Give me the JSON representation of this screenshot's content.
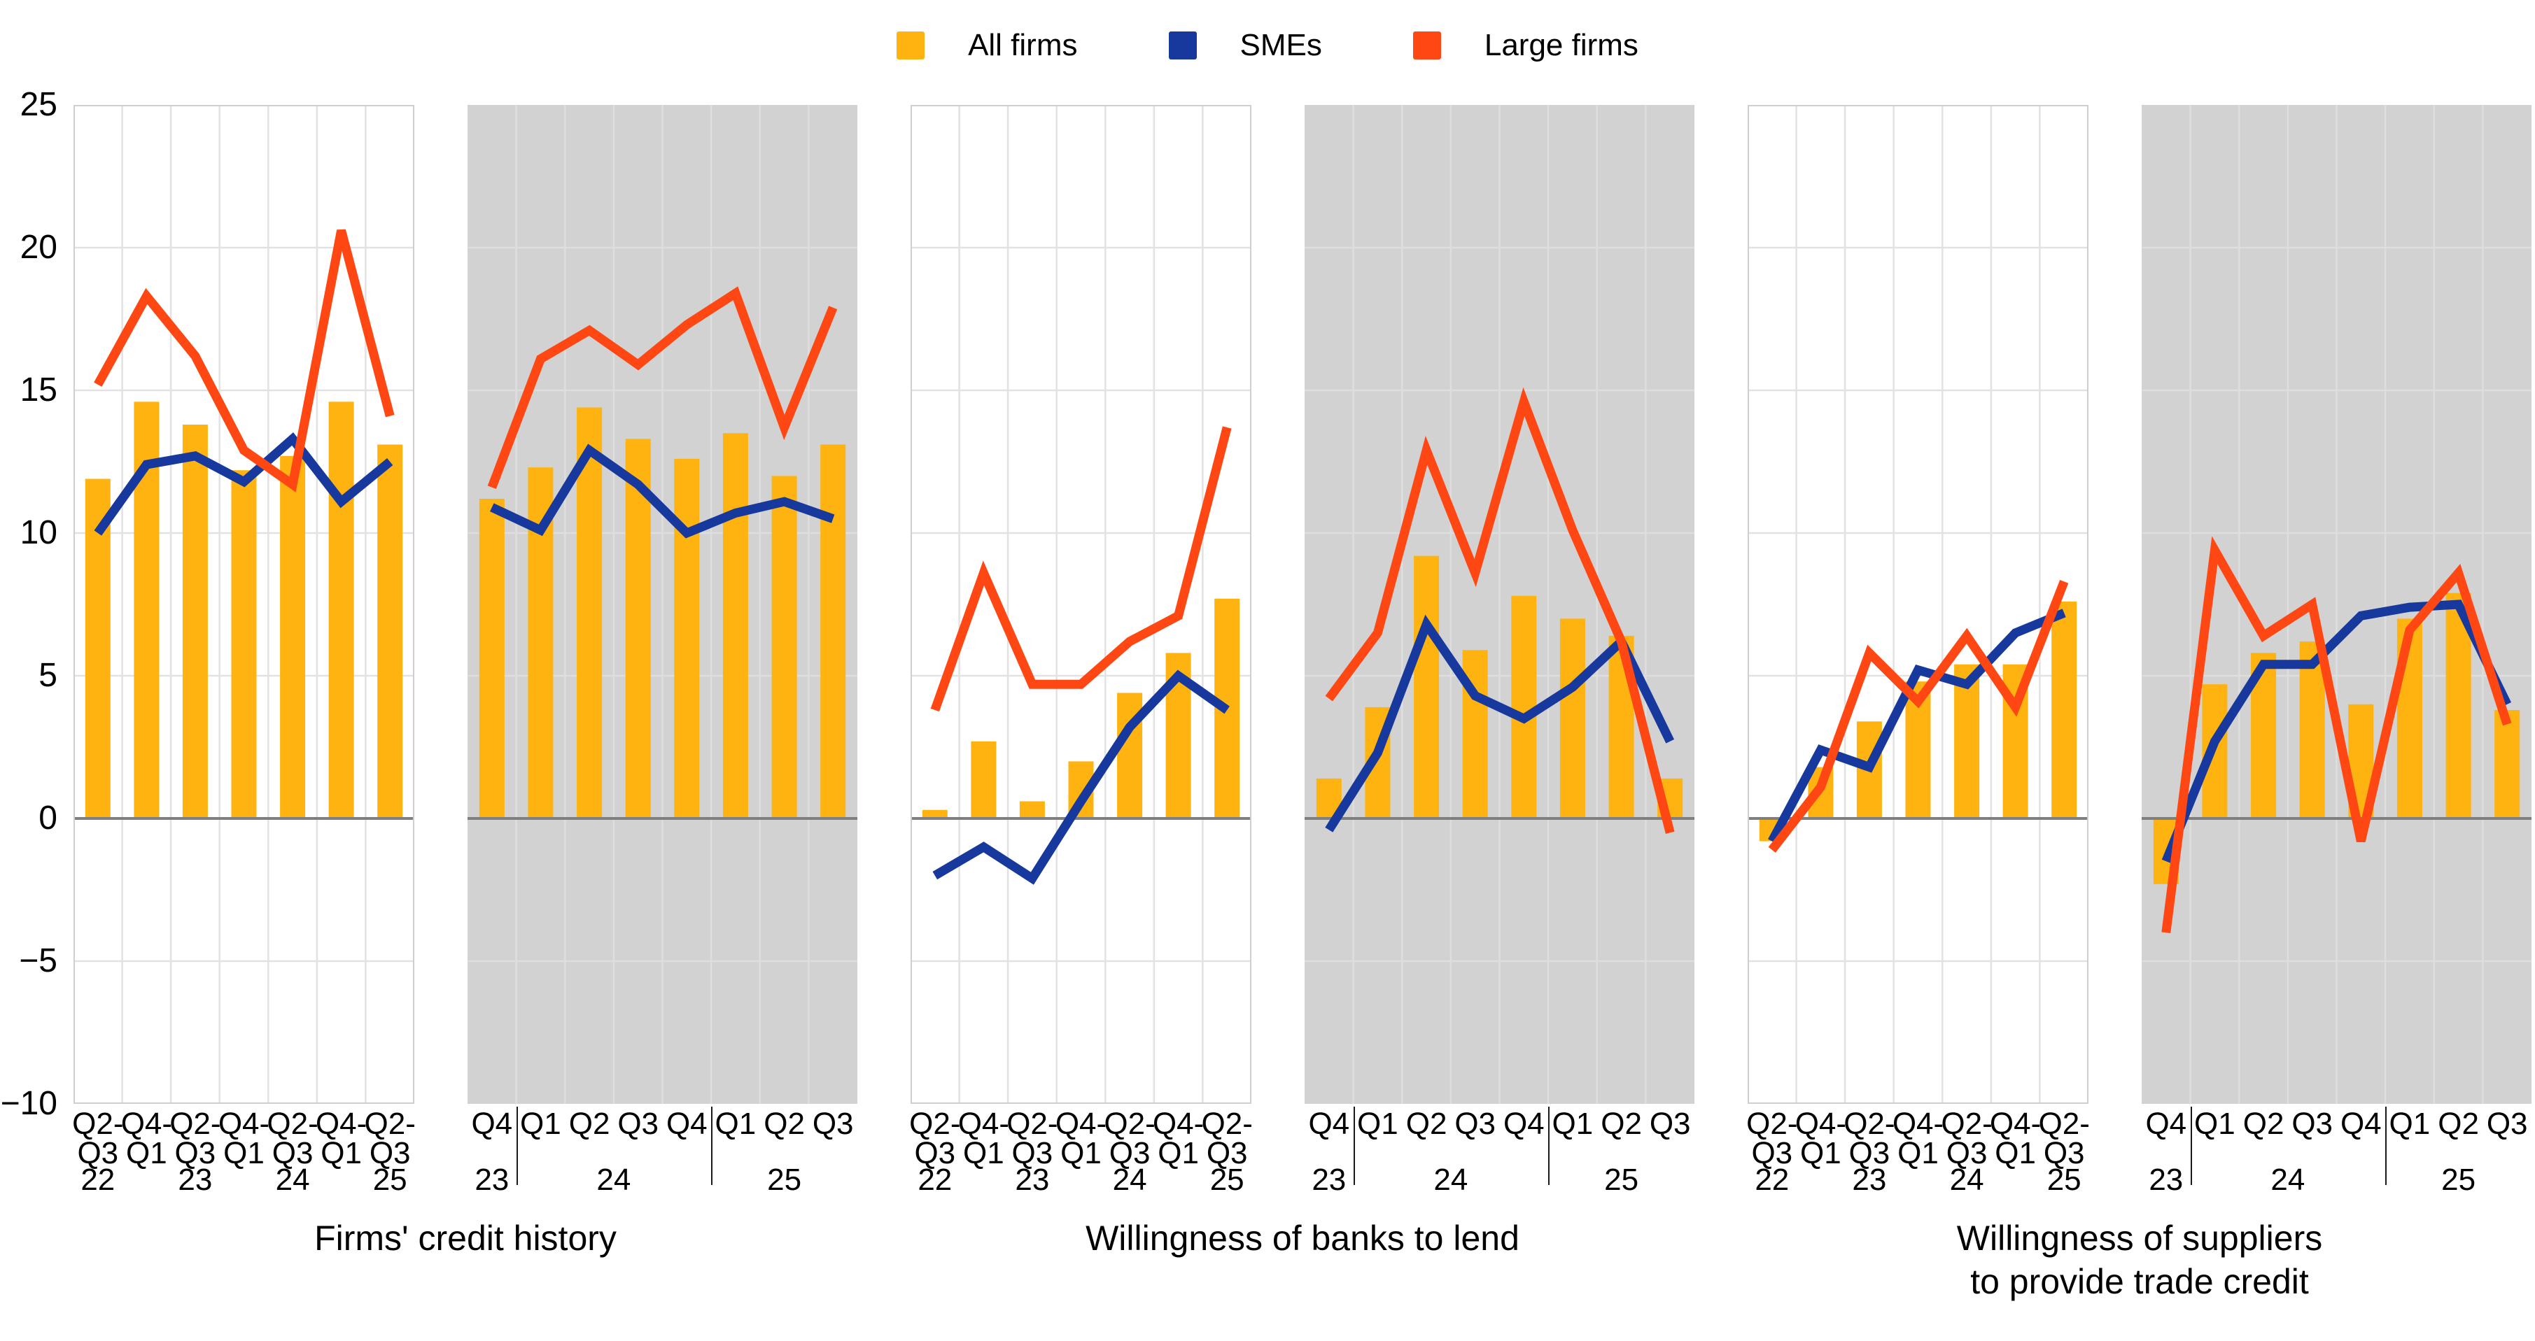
{
  "legend": {
    "items": [
      {
        "key": "all-firms",
        "label": "All firms",
        "color": "#FFB310"
      },
      {
        "key": "smes",
        "label": "SMEs",
        "color": "#17399E"
      },
      {
        "key": "large-firms",
        "label": "Large firms",
        "color": "#FF4713"
      }
    ]
  },
  "y_axis": {
    "ticks": [
      {
        "label": "25",
        "value": 25
      },
      {
        "label": "20",
        "value": 20
      },
      {
        "label": "15",
        "value": 15
      },
      {
        "label": "10",
        "value": 10
      },
      {
        "label": "5",
        "value": 5
      },
      {
        "label": "0",
        "value": 0
      },
      {
        "label": "−5",
        "value": -5
      },
      {
        "label": "−10",
        "value": -10
      }
    ]
  },
  "groups": [
    {
      "title": "Firms' credit history"
    },
    {
      "title": "Willingness of banks to lend"
    },
    {
      "title": "Willingness of suppliers\nto provide trade credit"
    }
  ],
  "style": {
    "bar_color": "#FFB310",
    "sme_color": "#17399E",
    "large_color": "#FF4713",
    "gray_panel": "#D2D2D2",
    "grid_on_white": "#E2E2E2",
    "grid_on_gray": "#DEDEDE",
    "panel_border": "#CFCFCF",
    "zero_line": "#7F7F7F"
  },
  "chart_data": [
    {
      "key": "credit-history-biannual",
      "type": "bar",
      "subtype": "bar+line",
      "background": "white",
      "layout": "biannual",
      "ylim": [
        -10,
        25
      ],
      "grid": true,
      "categories": [
        "Q2-Q3 22",
        "Q4-Q1",
        "Q2-Q3 23",
        "Q4-Q1",
        "Q2-Q3 24",
        "Q4-Q1",
        "Q2-Q3 25"
      ],
      "x_line1": [
        "Q2-",
        "Q4-",
        "Q2-",
        "Q4-",
        "Q2-",
        "Q4-",
        "Q2-"
      ],
      "x_line2": [
        "Q3",
        "Q1",
        "Q3",
        "Q1",
        "Q3",
        "Q1",
        "Q3"
      ],
      "years": [
        {
          "text": "22",
          "slot": 0
        },
        {
          "text": "23",
          "slot": 2
        },
        {
          "text": "24",
          "slot": 4
        },
        {
          "text": "25",
          "slot": 6
        }
      ],
      "series": [
        {
          "name": "All firms",
          "kind": "bar",
          "values": [
            11.9,
            14.6,
            13.8,
            12.2,
            12.7,
            14.6,
            13.1
          ]
        },
        {
          "name": "SMEs",
          "kind": "line",
          "values": [
            10.0,
            12.4,
            12.7,
            11.8,
            13.3,
            11.1,
            12.5
          ]
        },
        {
          "name": "Large firms",
          "kind": "line",
          "values": [
            15.2,
            18.3,
            16.2,
            12.9,
            11.7,
            20.6,
            14.1
          ]
        }
      ]
    },
    {
      "key": "credit-history-quarterly",
      "type": "bar",
      "subtype": "bar+line",
      "background": "gray",
      "layout": "quarterly",
      "ylim": [
        -10,
        25
      ],
      "grid": true,
      "categories": [
        "Q4 23",
        "Q1 24",
        "Q2 24",
        "Q3 24",
        "Q4 24",
        "Q1 25",
        "Q2 25",
        "Q3 25"
      ],
      "x_line1": [
        "Q4",
        "Q1",
        "Q2",
        "Q3",
        "Q4",
        "Q1",
        "Q2",
        "Q3"
      ],
      "year_groups": [
        {
          "text": "23",
          "from": 0,
          "to": 0
        },
        {
          "text": "24",
          "from": 1,
          "to": 4
        },
        {
          "text": "25",
          "from": 5,
          "to": 7
        }
      ],
      "separators_after": [
        0,
        4
      ],
      "series": [
        {
          "name": "All firms",
          "kind": "bar",
          "values": [
            11.2,
            12.3,
            14.4,
            13.3,
            12.6,
            13.5,
            12.0,
            13.1
          ]
        },
        {
          "name": "SMEs",
          "kind": "line",
          "values": [
            10.9,
            10.1,
            12.9,
            11.7,
            10.0,
            10.7,
            11.1,
            10.5
          ]
        },
        {
          "name": "Large firms",
          "kind": "line",
          "values": [
            11.6,
            16.1,
            17.1,
            15.9,
            17.3,
            18.4,
            13.7,
            17.9
          ]
        }
      ]
    },
    {
      "key": "banks-biannual",
      "type": "bar",
      "subtype": "bar+line",
      "background": "white",
      "layout": "biannual",
      "ylim": [
        -10,
        25
      ],
      "grid": true,
      "categories": [
        "Q2-Q3 22",
        "Q4-Q1",
        "Q2-Q3 23",
        "Q4-Q1",
        "Q2-Q3 24",
        "Q4-Q1",
        "Q2-Q3 25"
      ],
      "x_line1": [
        "Q2-",
        "Q4-",
        "Q2-",
        "Q4-",
        "Q2-",
        "Q4-",
        "Q2-"
      ],
      "x_line2": [
        "Q3",
        "Q1",
        "Q3",
        "Q1",
        "Q3",
        "Q1",
        "Q3"
      ],
      "years": [
        {
          "text": "22",
          "slot": 0
        },
        {
          "text": "23",
          "slot": 2
        },
        {
          "text": "24",
          "slot": 4
        },
        {
          "text": "25",
          "slot": 6
        }
      ],
      "series": [
        {
          "name": "All firms",
          "kind": "bar",
          "values": [
            0.3,
            2.7,
            0.6,
            2.0,
            4.4,
            5.8,
            7.7
          ]
        },
        {
          "name": "SMEs",
          "kind": "line",
          "values": [
            -2.0,
            -1.0,
            -2.1,
            0.6,
            3.2,
            5.0,
            3.8
          ]
        },
        {
          "name": "Large firms",
          "kind": "line",
          "values": [
            3.8,
            8.6,
            4.7,
            4.7,
            6.2,
            7.1,
            13.7
          ]
        }
      ]
    },
    {
      "key": "banks-quarterly",
      "type": "bar",
      "subtype": "bar+line",
      "background": "gray",
      "layout": "quarterly",
      "ylim": [
        -10,
        25
      ],
      "grid": true,
      "categories": [
        "Q4 23",
        "Q1 24",
        "Q2 24",
        "Q3 24",
        "Q4 24",
        "Q1 25",
        "Q2 25",
        "Q3 25"
      ],
      "x_line1": [
        "Q4",
        "Q1",
        "Q2",
        "Q3",
        "Q4",
        "Q1",
        "Q2",
        "Q3"
      ],
      "year_groups": [
        {
          "text": "23",
          "from": 0,
          "to": 0
        },
        {
          "text": "24",
          "from": 1,
          "to": 4
        },
        {
          "text": "25",
          "from": 5,
          "to": 7
        }
      ],
      "separators_after": [
        0,
        4
      ],
      "series": [
        {
          "name": "All firms",
          "kind": "bar",
          "values": [
            1.4,
            3.9,
            9.2,
            5.9,
            7.8,
            7.0,
            6.4,
            1.4
          ]
        },
        {
          "name": "SMEs",
          "kind": "line",
          "values": [
            -0.4,
            2.3,
            6.8,
            4.3,
            3.5,
            4.6,
            6.2,
            2.7
          ]
        },
        {
          "name": "Large firms",
          "kind": "line",
          "values": [
            4.2,
            6.5,
            12.9,
            8.6,
            14.6,
            10.1,
            6.2,
            -0.5
          ]
        }
      ]
    },
    {
      "key": "suppliers-biannual",
      "type": "bar",
      "subtype": "bar+line",
      "background": "white",
      "layout": "biannual",
      "ylim": [
        -10,
        25
      ],
      "grid": true,
      "categories": [
        "Q2-Q3 22",
        "Q4-Q1",
        "Q2-Q3 23",
        "Q4-Q1",
        "Q2-Q3 24",
        "Q4-Q1",
        "Q2-Q3 25"
      ],
      "x_line1": [
        "Q2-",
        "Q4-",
        "Q2-",
        "Q4-",
        "Q2-",
        "Q4-",
        "Q2-"
      ],
      "x_line2": [
        "Q3",
        "Q1",
        "Q3",
        "Q1",
        "Q3",
        "Q1",
        "Q3"
      ],
      "years": [
        {
          "text": "22",
          "slot": 0
        },
        {
          "text": "23",
          "slot": 2
        },
        {
          "text": "24",
          "slot": 4
        },
        {
          "text": "25",
          "slot": 6
        }
      ],
      "series": [
        {
          "name": "All firms",
          "kind": "bar",
          "values": [
            -0.8,
            1.8,
            3.4,
            4.8,
            5.4,
            5.4,
            7.6
          ]
        },
        {
          "name": "SMEs",
          "kind": "line",
          "values": [
            -0.8,
            2.4,
            1.8,
            5.2,
            4.7,
            6.5,
            7.2
          ]
        },
        {
          "name": "Large firms",
          "kind": "line",
          "values": [
            -1.1,
            1.1,
            5.8,
            4.1,
            6.4,
            3.9,
            8.3
          ]
        }
      ]
    },
    {
      "key": "suppliers-quarterly",
      "type": "bar",
      "subtype": "bar+line",
      "background": "gray",
      "layout": "quarterly",
      "ylim": [
        -10,
        25
      ],
      "grid": true,
      "categories": [
        "Q4 23",
        "Q1 24",
        "Q2 24",
        "Q3 24",
        "Q4 24",
        "Q1 25",
        "Q2 25",
        "Q3 25"
      ],
      "x_line1": [
        "Q4",
        "Q1",
        "Q2",
        "Q3",
        "Q4",
        "Q1",
        "Q2",
        "Q3"
      ],
      "year_groups": [
        {
          "text": "23",
          "from": 0,
          "to": 0
        },
        {
          "text": "24",
          "from": 1,
          "to": 4
        },
        {
          "text": "25",
          "from": 5,
          "to": 7
        }
      ],
      "separators_after": [
        0,
        4
      ],
      "series": [
        {
          "name": "All firms",
          "kind": "bar",
          "values": [
            -2.3,
            4.7,
            5.8,
            6.2,
            4.0,
            7.0,
            7.9,
            3.8
          ]
        },
        {
          "name": "SMEs",
          "kind": "line",
          "values": [
            -1.5,
            2.7,
            5.4,
            5.4,
            7.1,
            7.4,
            7.5,
            4.0
          ]
        },
        {
          "name": "Large firms",
          "kind": "line",
          "values": [
            -4.0,
            9.4,
            6.4,
            7.5,
            -0.8,
            6.6,
            8.6,
            3.3
          ]
        }
      ]
    }
  ]
}
